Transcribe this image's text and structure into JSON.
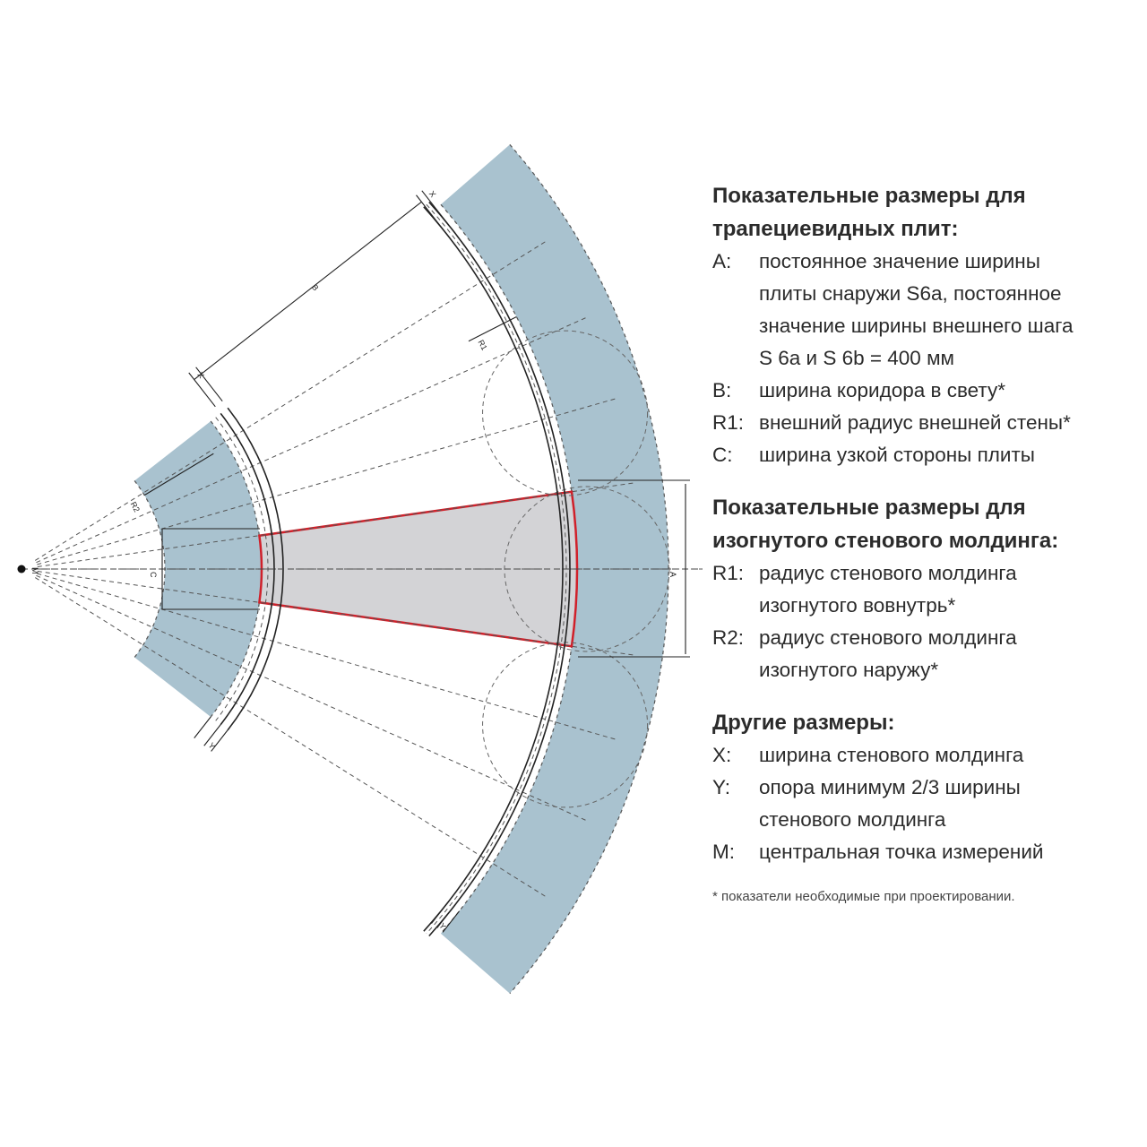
{
  "diagram": {
    "colors": {
      "wall": "#a9c2cf",
      "plate": "#d3d3d6",
      "outline": "#d0202a",
      "line": "#222222"
    },
    "labels": {
      "B": "B",
      "R1": "R1",
      "R2": "R2",
      "C": "C",
      "A": "A",
      "X": "X",
      "Y": "Y",
      "M": "M"
    }
  },
  "legend": {
    "sections": [
      {
        "title": "Показательные размеры для трапециевидных плит:",
        "rows": [
          {
            "key": "A:",
            "lines": [
              "постоянное значение ширины",
              "плиты снаружи S6a, постоянное",
              "значение ширины внешнего шага",
              "S 6a и S 6b = 400 мм"
            ]
          },
          {
            "key": "B:",
            "lines": [
              "ширина коридора в свету*"
            ]
          },
          {
            "key": "R1:",
            "lines": [
              "внешний радиус внешней стены*"
            ]
          },
          {
            "key": "C:",
            "lines": [
              "ширина узкой стороны плиты"
            ]
          }
        ]
      },
      {
        "title": "Показательные размеры для изогнутого стенового молдинга:",
        "rows": [
          {
            "key": "R1:",
            "lines": [
              "радиус стенового молдинга",
              "изогнутого вовнутрь*"
            ]
          },
          {
            "key": "R2:",
            "lines": [
              "радиус стенового молдинга",
              "изогнутого наружу*"
            ]
          }
        ]
      },
      {
        "title": "Другие размеры:",
        "rows": [
          {
            "key": "X:",
            "lines": [
              "ширина стенового молдинга"
            ]
          },
          {
            "key": "Y:",
            "lines": [
              "опора минимум 2/3 ширины",
              "стенового молдинга"
            ]
          },
          {
            "key": "M:",
            "lines": [
              "центральная точка измерений"
            ]
          }
        ]
      }
    ],
    "footnote": "* показатели необходимые при проектировании."
  }
}
